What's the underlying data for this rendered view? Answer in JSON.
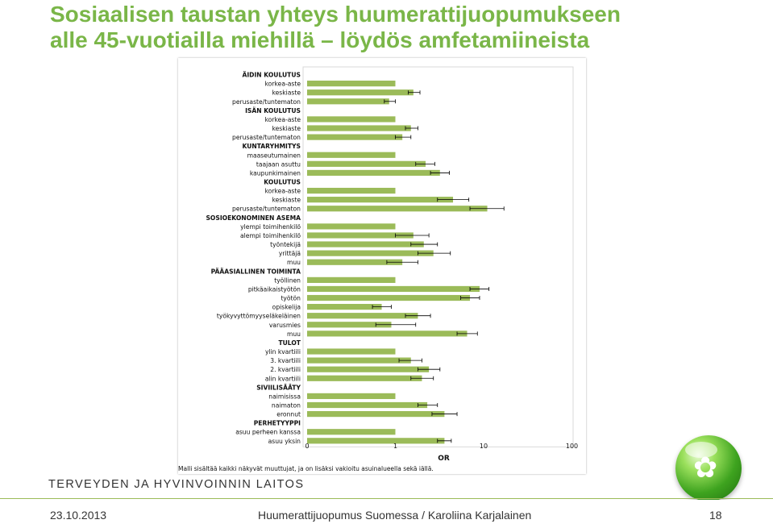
{
  "title": {
    "line1": "Sosiaalisen taustan yhteys huumerattijuopumukseen",
    "line2": "alle 45-vuotiailla miehillä – löydös amfetamiineista"
  },
  "organization": "TERVEYDEN JA HYVINVOINNIN LAITOS",
  "footer": {
    "date": "23.10.2013",
    "center": "Huumerattijuopumus Suomessa / Karoliina Karjalainen",
    "page": "18"
  },
  "colors": {
    "bar": "#9bbb59",
    "title": "#7ab648"
  },
  "chart_data": {
    "type": "bar",
    "orientation": "horizontal",
    "xlabel": "OR",
    "xscale": "log",
    "xticks": [
      "0",
      "1",
      "10",
      "100"
    ],
    "note": "Malli sisältää kaikki näkyvät muuttujat, ja on lisäksi vakioitu asuinalueella sekä iällä.",
    "rows": [
      {
        "label": "ÄIDIN KOULUTUS",
        "header": true
      },
      {
        "label": "korkea-aste",
        "or": 1.0
      },
      {
        "label": "keskiaste",
        "or": 1.6,
        "ci": [
          1.4,
          1.9
        ]
      },
      {
        "label": "perusaste/tuntematon",
        "or": 0.85,
        "ci": [
          0.75,
          1.0
        ]
      },
      {
        "label": "ISÄN KOULUTUS",
        "header": true
      },
      {
        "label": "korkea-aste",
        "or": 1.0
      },
      {
        "label": "keskiaste",
        "or": 1.5,
        "ci": [
          1.3,
          1.8
        ]
      },
      {
        "label": "perusaste/tuntematon",
        "or": 1.2,
        "ci": [
          1.0,
          1.5
        ]
      },
      {
        "label": "KUNTARYHMITYS",
        "header": true
      },
      {
        "label": "maaseutumainen",
        "or": 1.0
      },
      {
        "label": "taajaan asuttu",
        "or": 2.2,
        "ci": [
          1.7,
          2.8
        ]
      },
      {
        "label": "kaupunkimainen",
        "or": 3.2,
        "ci": [
          2.5,
          4.1
        ]
      },
      {
        "label": "KOULUTUS",
        "header": true
      },
      {
        "label": "korkea-aste",
        "or": 1.0
      },
      {
        "label": "keskiaste",
        "or": 4.5,
        "ci": [
          3.0,
          6.8
        ]
      },
      {
        "label": "perusaste/tuntematon",
        "or": 11.0,
        "ci": [
          7.0,
          17.0
        ]
      },
      {
        "label": "SOSIOEKONOMINEN ASEMA",
        "header": true
      },
      {
        "label": "ylempi toimihenkilö",
        "or": 1.0
      },
      {
        "label": "alempi toimihenkilö",
        "or": 1.6,
        "ci": [
          1.0,
          2.4
        ]
      },
      {
        "label": "työntekijä",
        "or": 2.1,
        "ci": [
          1.5,
          3.0
        ]
      },
      {
        "label": "yrittäjä",
        "or": 2.7,
        "ci": [
          1.8,
          4.2
        ]
      },
      {
        "label": "muu",
        "or": 1.2,
        "ci": [
          0.8,
          1.8
        ]
      },
      {
        "label": "PÄÄASIALLINEN TOIMINTA",
        "header": true
      },
      {
        "label": "työllinen",
        "or": 1.0
      },
      {
        "label": "pitkäaikaistyötön",
        "or": 9.0,
        "ci": [
          7.0,
          11.5
        ]
      },
      {
        "label": "työtön",
        "or": 7.0,
        "ci": [
          5.5,
          9.0
        ]
      },
      {
        "label": "opiskelija",
        "or": 0.7,
        "ci": [
          0.55,
          0.9
        ]
      },
      {
        "label": "työkyvyttömyyseläkeläinen",
        "or": 1.8,
        "ci": [
          1.3,
          2.5
        ]
      },
      {
        "label": "varusmies",
        "or": 0.9,
        "ci": [
          0.6,
          1.7
        ]
      },
      {
        "label": "muu",
        "or": 6.5,
        "ci": [
          5.0,
          8.5
        ]
      },
      {
        "label": "TULOT",
        "header": true
      },
      {
        "label": "ylin kvartiili",
        "or": 1.0
      },
      {
        "label": "3. kvartiili",
        "or": 1.5,
        "ci": [
          1.1,
          2.0
        ]
      },
      {
        "label": "2. kvartiili",
        "or": 2.4,
        "ci": [
          1.8,
          3.2
        ]
      },
      {
        "label": "alin kvartiili",
        "or": 2.0,
        "ci": [
          1.5,
          2.7
        ]
      },
      {
        "label": "SIVIILISÄÄTY",
        "header": true
      },
      {
        "label": "naimisissa",
        "or": 1.0
      },
      {
        "label": "naimaton",
        "or": 2.3,
        "ci": [
          1.8,
          3.0
        ]
      },
      {
        "label": "eronnut",
        "or": 3.6,
        "ci": [
          2.6,
          5.0
        ]
      },
      {
        "label": "PERHETYYPPI",
        "header": true
      },
      {
        "label": "asuu perheen kanssa",
        "or": 1.0
      },
      {
        "label": "asuu yksin",
        "or": 3.6,
        "ci": [
          3.0,
          4.3
        ]
      }
    ]
  }
}
